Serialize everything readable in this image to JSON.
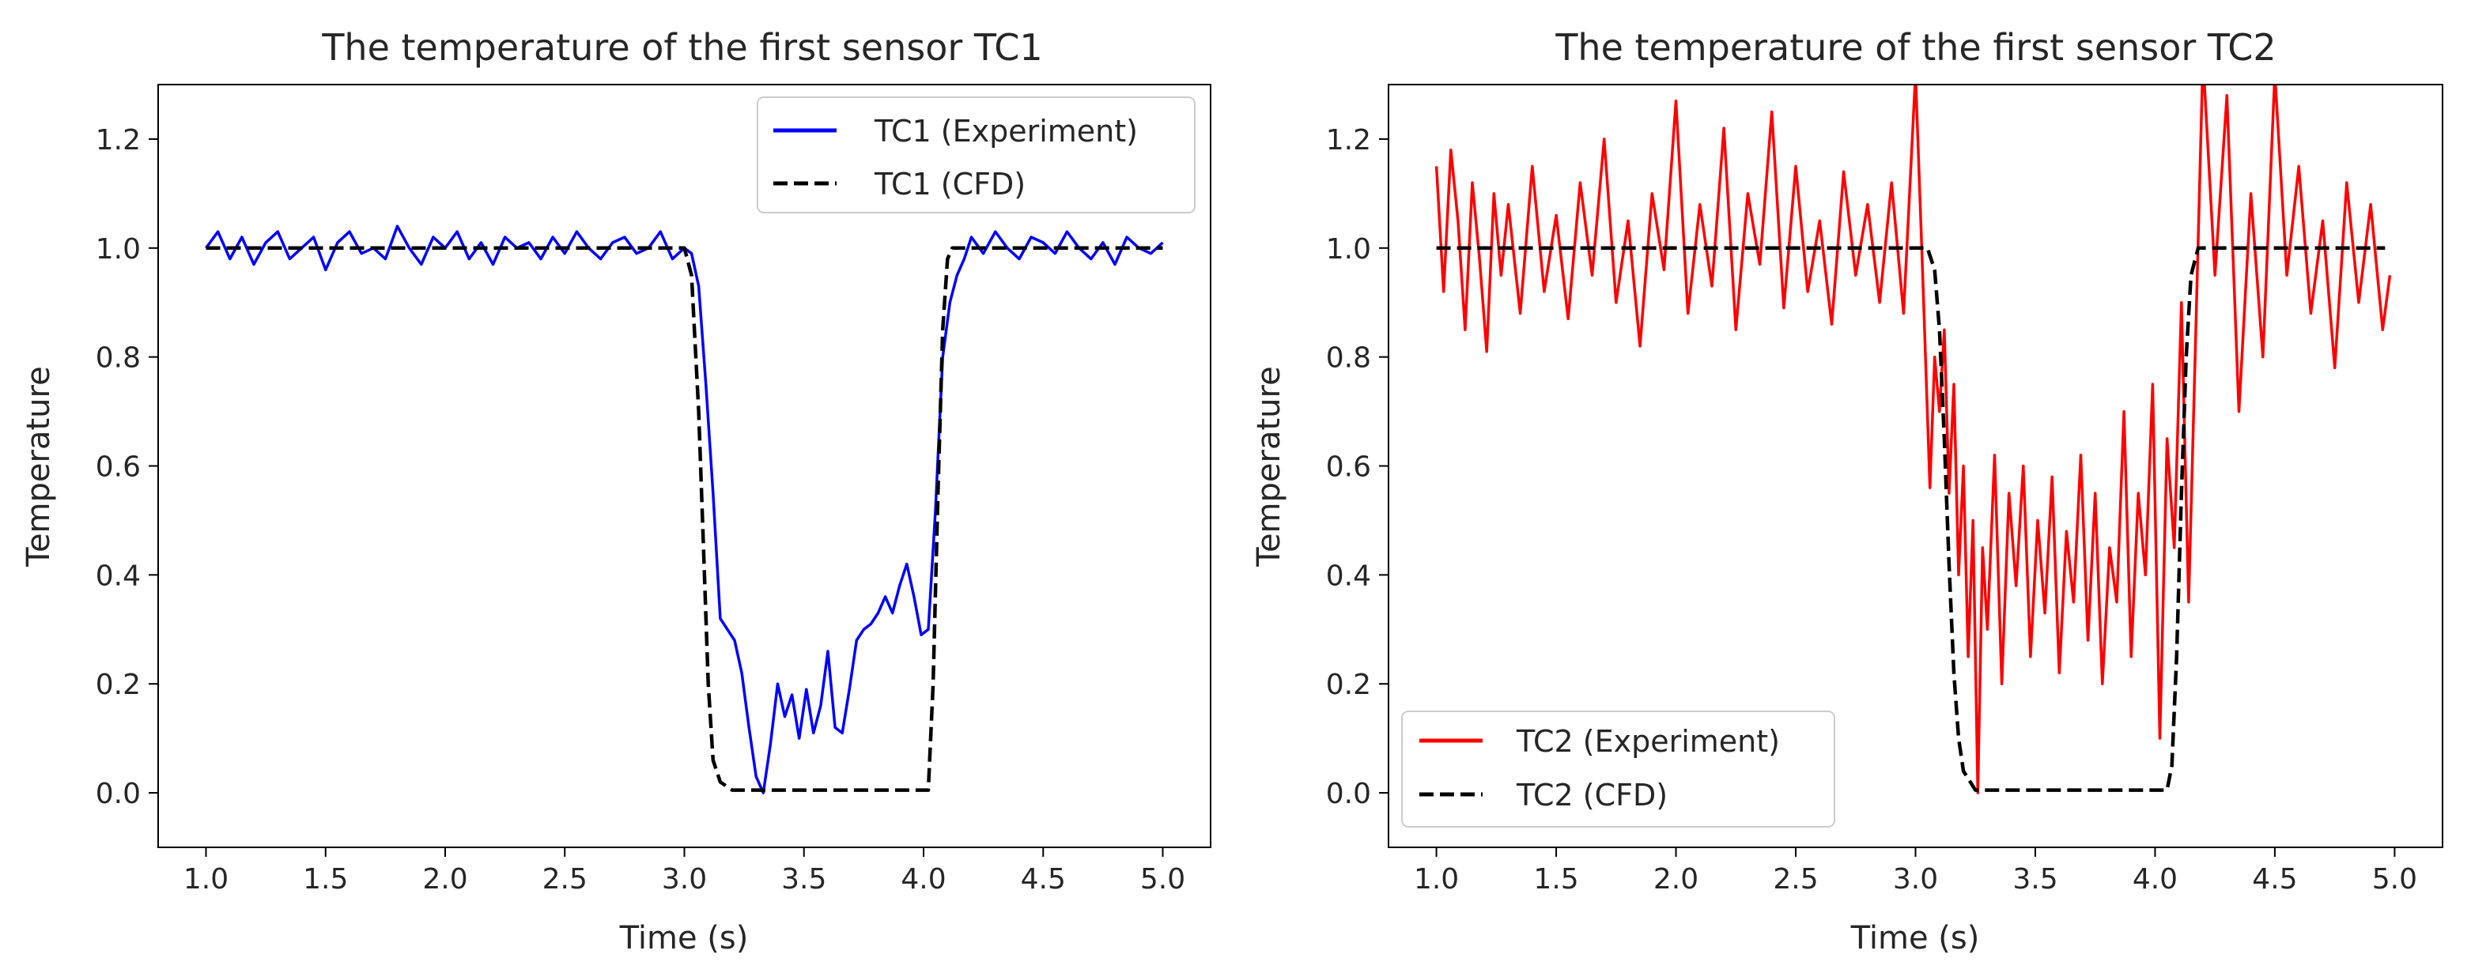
{
  "chart_data": [
    {
      "type": "line",
      "title": "The temperature of the first sensor TC1",
      "xlabel": "Time (s)",
      "ylabel": "Temperature",
      "xlim": [
        0.8,
        5.2
      ],
      "ylim": [
        -0.1,
        1.3
      ],
      "xticks": [
        1.0,
        1.5,
        2.0,
        2.5,
        3.0,
        3.5,
        4.0,
        4.5,
        5.0
      ],
      "xtick_labels": [
        "1.0",
        "1.5",
        "2.0",
        "2.5",
        "3.0",
        "3.5",
        "4.0",
        "4.5",
        "5.0"
      ],
      "yticks": [
        0.0,
        0.2,
        0.4,
        0.6,
        0.8,
        1.0,
        1.2
      ],
      "ytick_labels": [
        "0.0",
        "0.2",
        "0.4",
        "0.6",
        "0.8",
        "1.0",
        "1.2"
      ],
      "legend_position": "top-right",
      "series": [
        {
          "name": "TC1 (Experiment)",
          "color": "#0000ff",
          "style": "solid",
          "x": [
            1.0,
            1.05,
            1.1,
            1.15,
            1.2,
            1.25,
            1.3,
            1.35,
            1.4,
            1.45,
            1.5,
            1.55,
            1.6,
            1.65,
            1.7,
            1.75,
            1.8,
            1.85,
            1.9,
            1.95,
            2.0,
            2.05,
            2.1,
            2.15,
            2.2,
            2.25,
            2.3,
            2.35,
            2.4,
            2.45,
            2.5,
            2.55,
            2.6,
            2.65,
            2.7,
            2.75,
            2.8,
            2.85,
            2.9,
            2.95,
            3.0,
            3.03,
            3.06,
            3.09,
            3.12,
            3.15,
            3.18,
            3.21,
            3.24,
            3.27,
            3.3,
            3.33,
            3.36,
            3.39,
            3.42,
            3.45,
            3.48,
            3.51,
            3.54,
            3.57,
            3.6,
            3.63,
            3.66,
            3.69,
            3.72,
            3.75,
            3.78,
            3.81,
            3.84,
            3.87,
            3.9,
            3.93,
            3.96,
            3.99,
            4.02,
            4.05,
            4.08,
            4.11,
            4.14,
            4.17,
            4.2,
            4.25,
            4.3,
            4.35,
            4.4,
            4.45,
            4.5,
            4.55,
            4.6,
            4.65,
            4.7,
            4.75,
            4.8,
            4.85,
            4.9,
            4.95,
            5.0
          ],
          "y": [
            1.0,
            1.03,
            0.98,
            1.02,
            0.97,
            1.01,
            1.03,
            0.98,
            1.0,
            1.02,
            0.96,
            1.01,
            1.03,
            0.99,
            1.0,
            0.98,
            1.04,
            1.0,
            0.97,
            1.02,
            1.0,
            1.03,
            0.98,
            1.01,
            0.97,
            1.02,
            1.0,
            1.01,
            0.98,
            1.02,
            0.99,
            1.03,
            1.0,
            0.98,
            1.01,
            1.02,
            0.99,
            1.0,
            1.03,
            0.98,
            1.0,
            0.99,
            0.93,
            0.75,
            0.55,
            0.32,
            0.3,
            0.28,
            0.22,
            0.12,
            0.03,
            0.0,
            0.09,
            0.2,
            0.14,
            0.18,
            0.1,
            0.19,
            0.11,
            0.16,
            0.26,
            0.12,
            0.11,
            0.19,
            0.28,
            0.3,
            0.31,
            0.33,
            0.36,
            0.33,
            0.38,
            0.42,
            0.36,
            0.29,
            0.3,
            0.52,
            0.8,
            0.9,
            0.95,
            0.98,
            1.02,
            0.99,
            1.03,
            1.0,
            0.98,
            1.02,
            1.01,
            0.99,
            1.03,
            1.0,
            0.98,
            1.01,
            0.97,
            1.02,
            1.0,
            0.99,
            1.01
          ]
        },
        {
          "name": "TC1 (CFD)",
          "color": "#000000",
          "style": "dashed",
          "x": [
            1.0,
            3.0,
            3.03,
            3.06,
            3.08,
            3.1,
            3.12,
            3.15,
            3.2,
            3.3,
            4.02,
            4.04,
            4.06,
            4.08,
            4.1,
            4.12,
            5.0
          ],
          "y": [
            1.0,
            1.0,
            0.95,
            0.7,
            0.45,
            0.2,
            0.06,
            0.02,
            0.005,
            0.005,
            0.005,
            0.2,
            0.55,
            0.85,
            0.98,
            1.0,
            1.0
          ]
        }
      ]
    },
    {
      "type": "line",
      "title": "The temperature of the first sensor TC2",
      "xlabel": "Time (s)",
      "ylabel": "Temperature",
      "xlim": [
        0.8,
        5.2
      ],
      "ylim": [
        -0.1,
        1.3
      ],
      "xticks": [
        1.0,
        1.5,
        2.0,
        2.5,
        3.0,
        3.5,
        4.0,
        4.5,
        5.0
      ],
      "xtick_labels": [
        "1.0",
        "1.5",
        "2.0",
        "2.5",
        "3.0",
        "3.5",
        "4.0",
        "4.5",
        "5.0"
      ],
      "yticks": [
        0.0,
        0.2,
        0.4,
        0.6,
        0.8,
        1.0,
        1.2
      ],
      "ytick_labels": [
        "0.0",
        "0.2",
        "0.4",
        "0.6",
        "0.8",
        "1.0",
        "1.2"
      ],
      "legend_position": "bottom-left",
      "series": [
        {
          "name": "TC2 (Experiment)",
          "color": "#ff0000",
          "style": "solid",
          "x": [
            1.0,
            1.03,
            1.06,
            1.09,
            1.12,
            1.15,
            1.18,
            1.21,
            1.24,
            1.27,
            1.3,
            1.35,
            1.4,
            1.45,
            1.5,
            1.55,
            1.6,
            1.65,
            1.7,
            1.75,
            1.8,
            1.85,
            1.9,
            1.95,
            2.0,
            2.05,
            2.1,
            2.15,
            2.2,
            2.25,
            2.3,
            2.35,
            2.4,
            2.45,
            2.5,
            2.55,
            2.6,
            2.65,
            2.7,
            2.75,
            2.8,
            2.85,
            2.9,
            2.95,
            3.0,
            3.03,
            3.06,
            3.08,
            3.1,
            3.12,
            3.14,
            3.16,
            3.18,
            3.2,
            3.22,
            3.24,
            3.26,
            3.28,
            3.3,
            3.33,
            3.36,
            3.39,
            3.42,
            3.45,
            3.48,
            3.51,
            3.54,
            3.57,
            3.6,
            3.63,
            3.66,
            3.69,
            3.72,
            3.75,
            3.78,
            3.81,
            3.84,
            3.87,
            3.9,
            3.93,
            3.96,
            3.99,
            4.02,
            4.05,
            4.08,
            4.11,
            4.14,
            4.17,
            4.2,
            4.25,
            4.3,
            4.35,
            4.4,
            4.45,
            4.5,
            4.55,
            4.6,
            4.65,
            4.7,
            4.75,
            4.8,
            4.85,
            4.9,
            4.95,
            4.98
          ],
          "y": [
            1.15,
            0.92,
            1.18,
            1.05,
            0.85,
            1.12,
            0.98,
            0.81,
            1.1,
            0.95,
            1.08,
            0.88,
            1.15,
            0.92,
            1.06,
            0.87,
            1.12,
            0.95,
            1.2,
            0.9,
            1.05,
            0.82,
            1.1,
            0.96,
            1.27,
            0.88,
            1.08,
            0.93,
            1.22,
            0.85,
            1.1,
            0.97,
            1.25,
            0.89,
            1.15,
            0.92,
            1.05,
            0.86,
            1.14,
            0.95,
            1.08,
            0.9,
            1.12,
            0.88,
            1.32,
            0.95,
            0.56,
            0.8,
            0.7,
            0.85,
            0.55,
            0.75,
            0.4,
            0.6,
            0.25,
            0.5,
            0.0,
            0.45,
            0.3,
            0.62,
            0.2,
            0.55,
            0.38,
            0.6,
            0.25,
            0.5,
            0.33,
            0.58,
            0.22,
            0.48,
            0.35,
            0.62,
            0.28,
            0.55,
            0.2,
            0.45,
            0.35,
            0.7,
            0.25,
            0.55,
            0.4,
            0.75,
            0.1,
            0.65,
            0.45,
            0.9,
            0.35,
            0.85,
            1.35,
            0.95,
            1.28,
            0.7,
            1.1,
            0.8,
            1.32,
            0.95,
            1.15,
            0.88,
            1.05,
            0.78,
            1.12,
            0.9,
            1.08,
            0.85,
            0.95
          ]
        },
        {
          "name": "TC2 (CFD)",
          "color": "#000000",
          "style": "dashed",
          "x": [
            1.0,
            3.05,
            3.08,
            3.1,
            3.12,
            3.14,
            3.16,
            3.18,
            3.2,
            3.25,
            3.3,
            4.05,
            4.07,
            4.09,
            4.11,
            4.13,
            4.15,
            4.18,
            4.96
          ],
          "y": [
            1.0,
            1.0,
            0.96,
            0.85,
            0.65,
            0.42,
            0.22,
            0.1,
            0.04,
            0.005,
            0.005,
            0.005,
            0.05,
            0.25,
            0.55,
            0.8,
            0.95,
            1.0,
            1.0
          ]
        }
      ]
    }
  ]
}
